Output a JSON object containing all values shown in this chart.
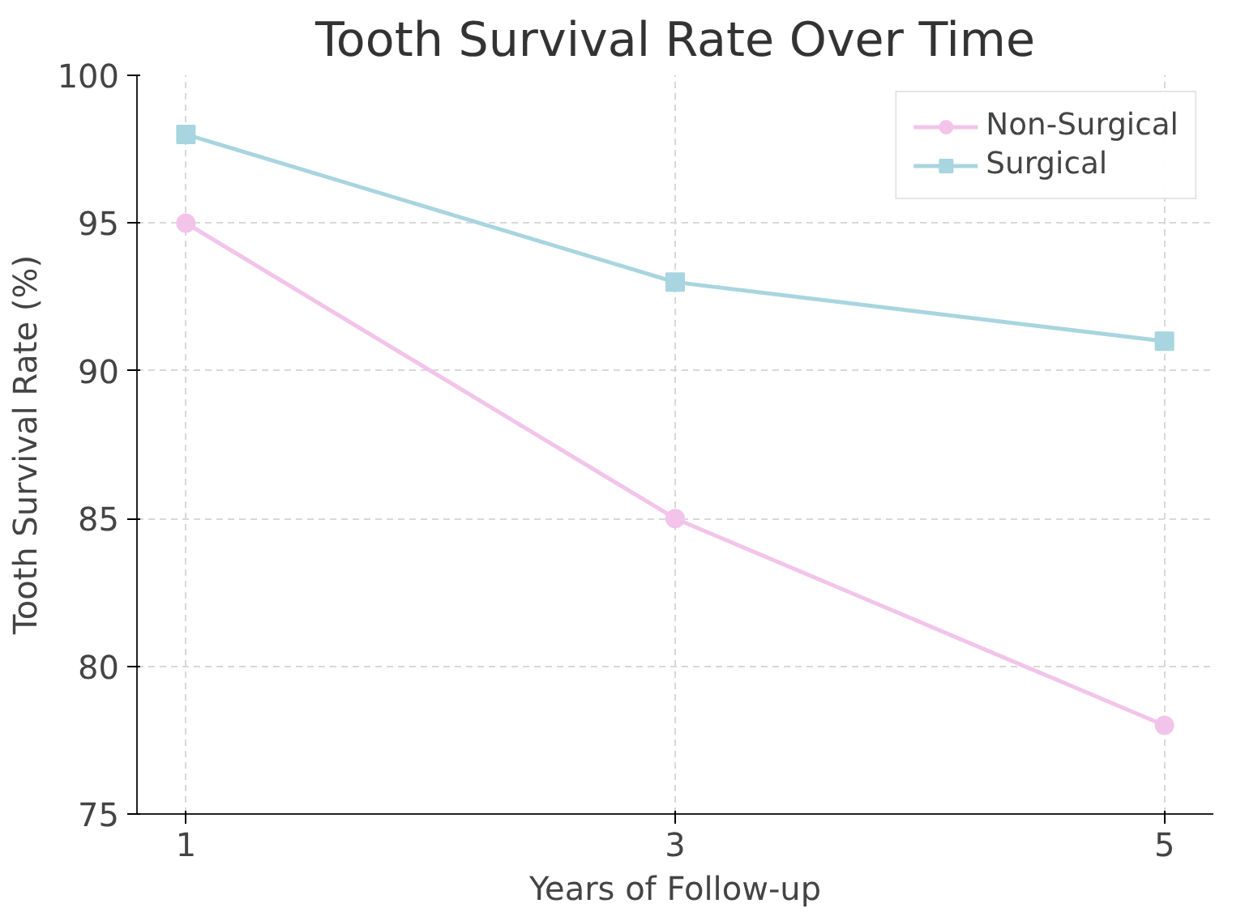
{
  "chart_data": {
    "type": "line",
    "title": "Tooth Survival Rate Over Time",
    "xlabel": "Years of Follow-up",
    "ylabel": "Tooth Survival Rate (%)",
    "x": [
      1,
      3,
      5
    ],
    "series": [
      {
        "name": "Non-Surgical",
        "color": "#f2c4ea",
        "values": [
          95,
          85,
          78
        ],
        "marker": "circle"
      },
      {
        "name": "Surgical",
        "color": "#a8d5df",
        "values": [
          98,
          93,
          91
        ],
        "marker": "square"
      }
    ],
    "xlim": [
      0.8,
      5.2
    ],
    "xticks": [
      1,
      3,
      5
    ],
    "ylim": [
      75,
      100
    ],
    "yticks": [
      75,
      80,
      85,
      90,
      95,
      100
    ],
    "grid": true,
    "legend": "top right",
    "line_style": "solid"
  }
}
